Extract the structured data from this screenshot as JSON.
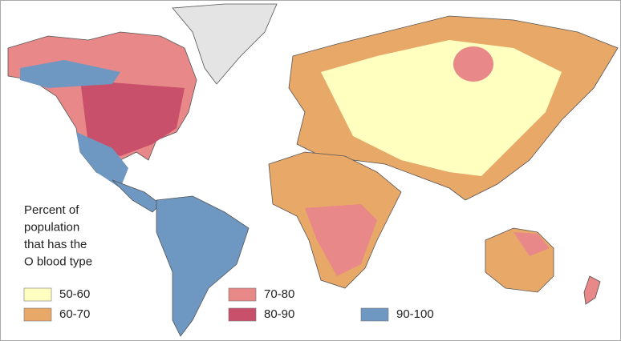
{
  "legend": {
    "title": [
      "Percent of",
      "population",
      "that has the",
      "O blood type"
    ],
    "items": [
      {
        "label": "50-60",
        "color": "#ffffc0"
      },
      {
        "label": "60-70",
        "color": "#e8a868"
      },
      {
        "label": "70-80",
        "color": "#e88888"
      },
      {
        "label": "80-90",
        "color": "#c8506a"
      },
      {
        "label": "90-100",
        "color": "#6e98c2"
      }
    ]
  }
}
